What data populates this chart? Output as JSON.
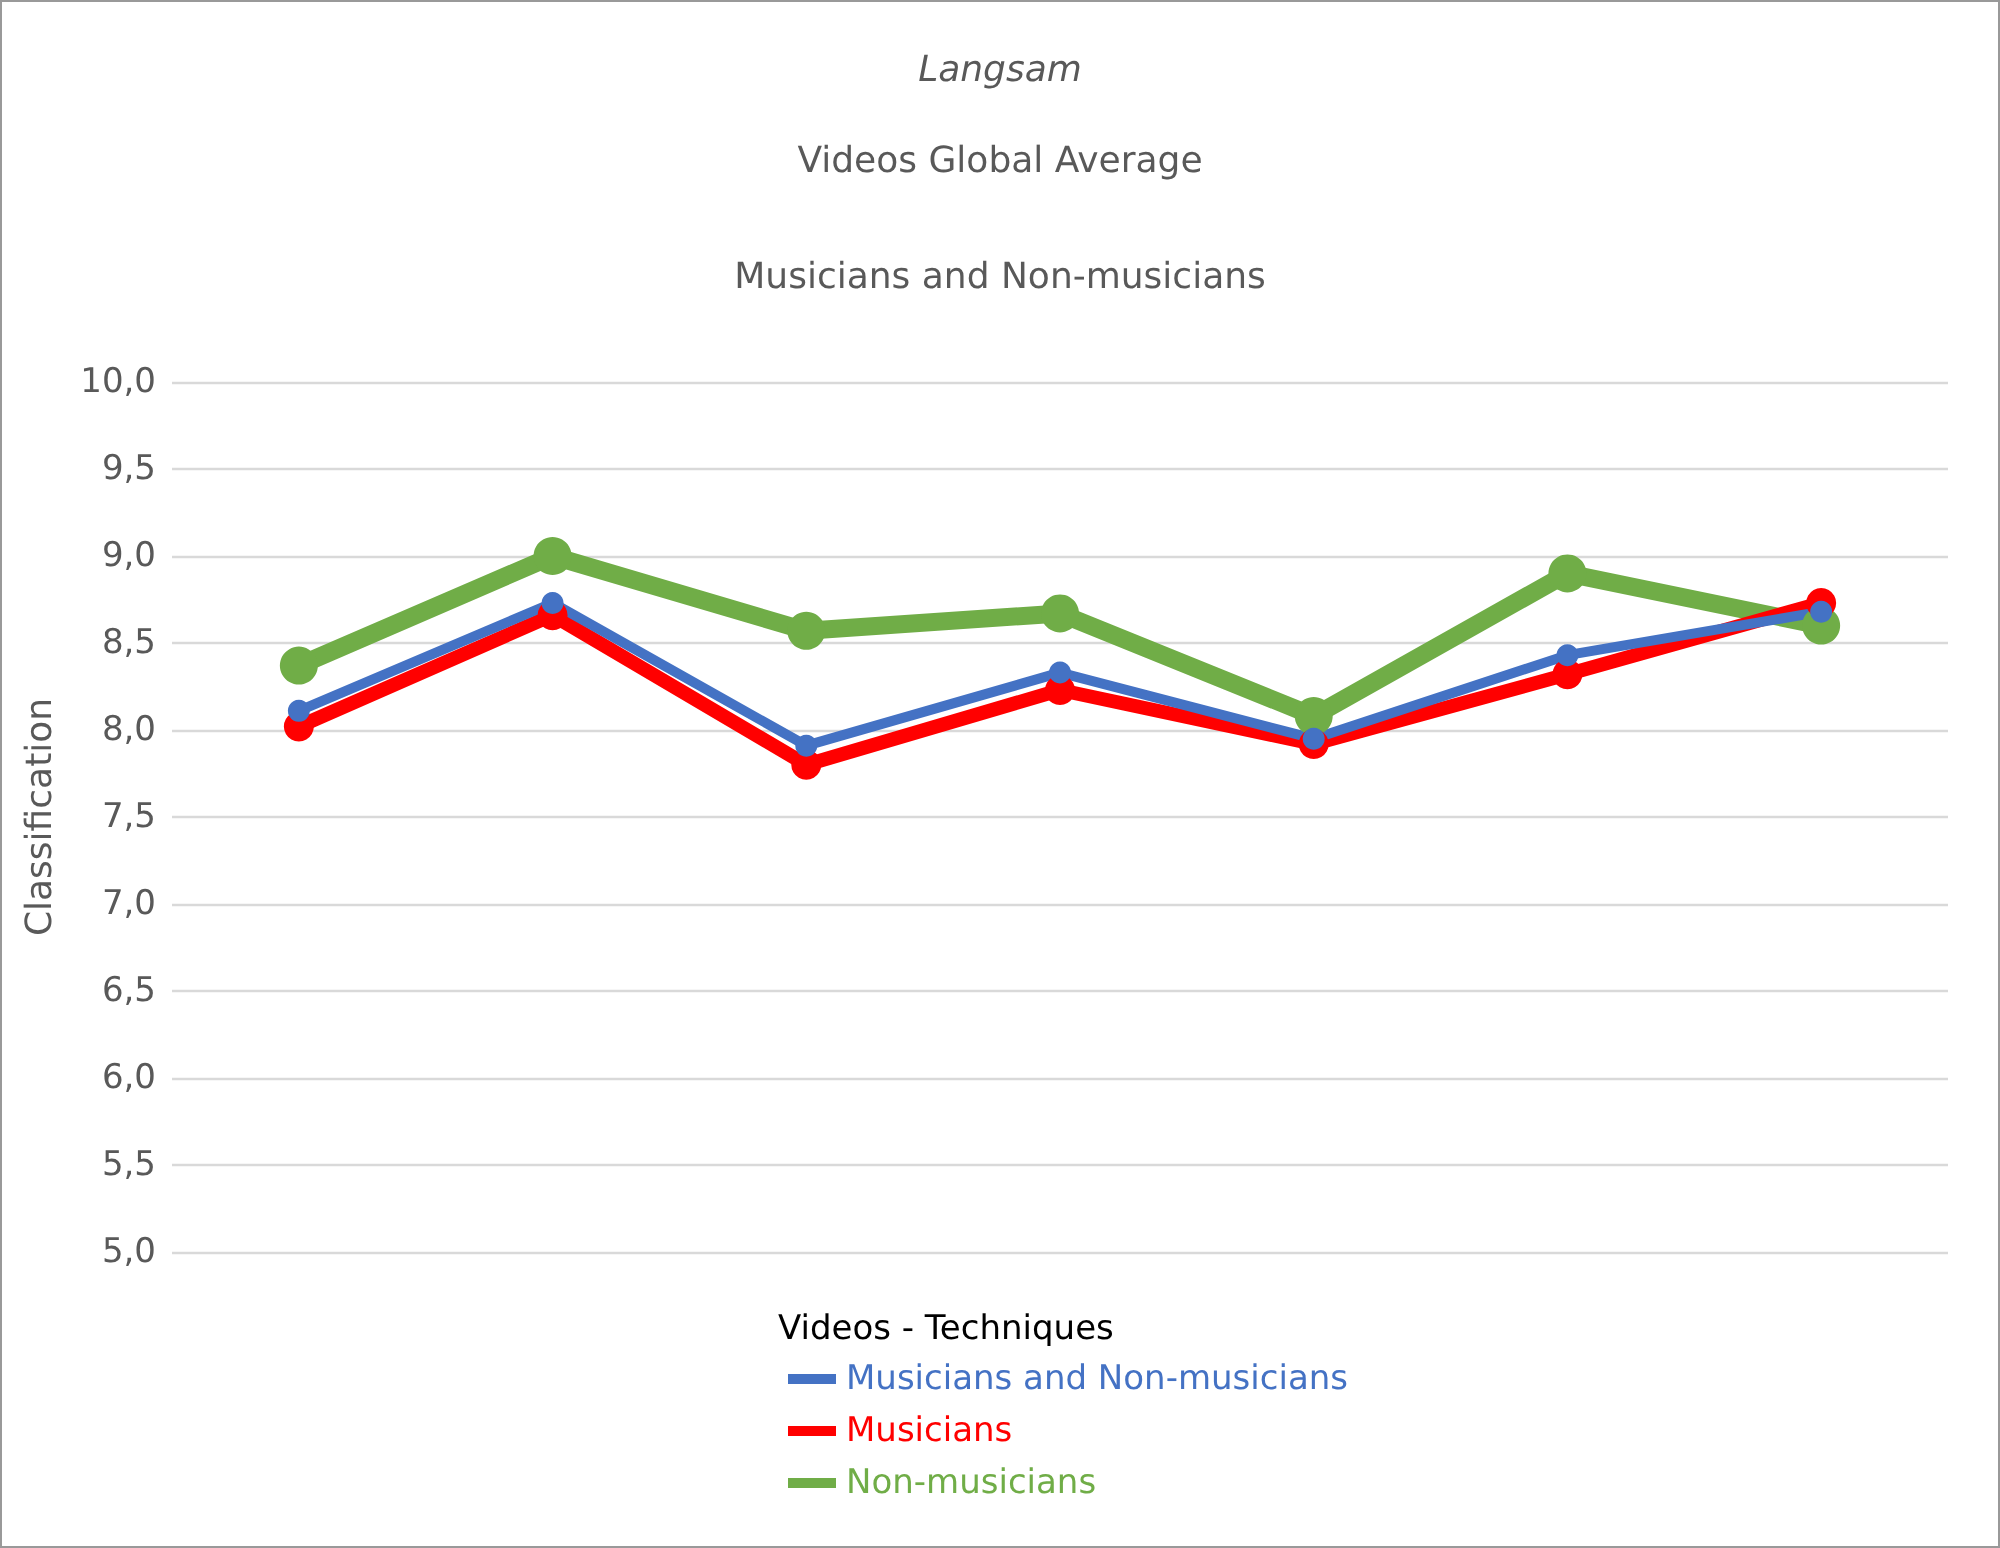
{
  "chart_data": {
    "type": "line",
    "title": "Langsam",
    "subtitle": "Videos Global Average\n\nMusicians and Non-musicians",
    "ylabel": "Classification",
    "legend_title": "Videos - Techniques",
    "categories": [
      null,
      null,
      null,
      null,
      null,
      null,
      null
    ],
    "series": [
      {
        "name": "Musicians and Non-musicians",
        "color": "#4472c4",
        "values": [
          8.11,
          8.73,
          7.91,
          8.33,
          7.95,
          8.43,
          8.68
        ]
      },
      {
        "name": "Musicians",
        "color": "#ff0000",
        "values": [
          8.02,
          8.66,
          7.8,
          8.23,
          7.92,
          8.32,
          8.73
        ]
      },
      {
        "name": "Non-musicians",
        "color": "#70ad47",
        "values": [
          8.37,
          9.0,
          8.57,
          8.67,
          8.08,
          8.9,
          8.6
        ]
      }
    ],
    "ylim": [
      5,
      10
    ],
    "yticks": [
      {
        "value": 5,
        "label": "5,0"
      },
      {
        "value": 5.5,
        "label": "5,5"
      },
      {
        "value": 6,
        "label": "6,0"
      },
      {
        "value": 6.5,
        "label": "6,5"
      },
      {
        "value": 7,
        "label": "7,0"
      },
      {
        "value": 7.5,
        "label": "7,5"
      },
      {
        "value": 8,
        "label": "8,0"
      },
      {
        "value": 8.5,
        "label": "8,5"
      },
      {
        "value": 9,
        "label": "9,0"
      },
      {
        "value": 9.5,
        "label": "9,5"
      },
      {
        "value": 10,
        "label": "10,0"
      }
    ],
    "grid": "y",
    "legend": "bottom",
    "marker": "circle",
    "line_style": "solid",
    "tick_labels": "y"
  }
}
